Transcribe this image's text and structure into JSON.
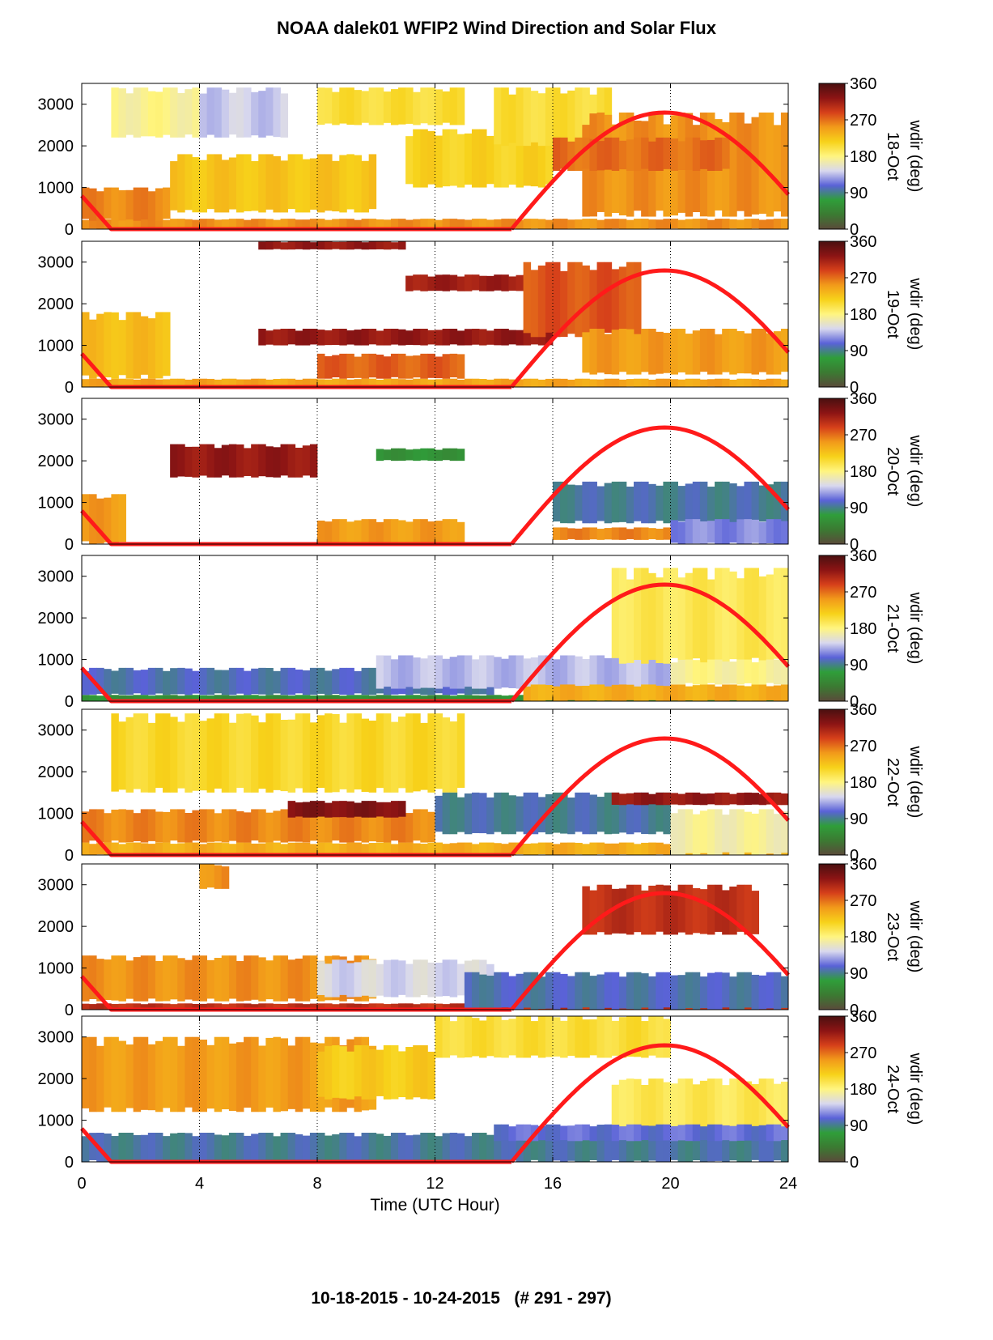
{
  "title": "NOAA dalek01 WFIP2 Wind Direction and Solar Flux",
  "footer": "10-18-2015 - 10-24-2015   (# 291 - 297)",
  "colors": {
    "colormap": [
      "#5a4a3a",
      "#3b7a32",
      "#2f9e3a",
      "#5a62d8",
      "#d8d8ee",
      "#fff580",
      "#f7d21a",
      "#f29a1a",
      "#d6401a",
      "#8c1414",
      "#4a1010"
    ],
    "solar_curve": "#ff1a1a",
    "grid": "#000000"
  },
  "chart_data": {
    "type": "heatmap",
    "xlabel": "Time (UTC Hour)",
    "xlim": [
      0,
      24
    ],
    "xticks": [
      "0",
      "4",
      "8",
      "12",
      "16",
      "20",
      "24"
    ],
    "ylim": [
      0,
      3500
    ],
    "yticks": [
      "0",
      "1000",
      "2000",
      "3000"
    ],
    "colorbar": {
      "label": "wdir (deg)",
      "range": [
        0,
        360
      ],
      "ticks": [
        "0",
        "90",
        "180",
        "270",
        "360"
      ]
    },
    "solar_flux_curve": {
      "sunrise_hour": 14.6,
      "sunset_hour": 1.0,
      "peak_hour": 19.8,
      "peak_height": 2800,
      "value_at_0h": 800
    },
    "panels": [
      {
        "date": "18-Oct",
        "regions": [
          {
            "x": [
              0,
              24
            ],
            "y": [
              0,
              250
            ],
            "dir": 255
          },
          {
            "x": [
              0,
              3
            ],
            "y": [
              200,
              1000
            ],
            "dir": 260
          },
          {
            "x": [
              3,
              10
            ],
            "y": [
              400,
              1800
            ],
            "dir": 225
          },
          {
            "x": [
              1,
              4
            ],
            "y": [
              2200,
              3400
            ],
            "dir": 175
          },
          {
            "x": [
              4,
              7
            ],
            "y": [
              2200,
              3400
            ],
            "dir": 140
          },
          {
            "x": [
              8,
              13
            ],
            "y": [
              2500,
              3400
            ],
            "dir": 205
          },
          {
            "x": [
              11,
              16
            ],
            "y": [
              1000,
              2400
            ],
            "dir": 215
          },
          {
            "x": [
              14,
              18
            ],
            "y": [
              2000,
              3400
            ],
            "dir": 205
          },
          {
            "x": [
              17,
              24
            ],
            "y": [
              300,
              2800
            ],
            "dir": 255
          },
          {
            "x": [
              16,
              22
            ],
            "y": [
              1400,
              2200
            ],
            "dir": 270
          }
        ]
      },
      {
        "date": "19-Oct",
        "regions": [
          {
            "x": [
              0,
              24
            ],
            "y": [
              0,
              200
            ],
            "dir": 245
          },
          {
            "x": [
              0,
              3
            ],
            "y": [
              200,
              1800
            ],
            "dir": 230
          },
          {
            "x": [
              6,
              11
            ],
            "y": [
              3300,
              3500
            ],
            "dir": 320
          },
          {
            "x": [
              6,
              16
            ],
            "y": [
              1000,
              1400
            ],
            "dir": 320
          },
          {
            "x": [
              11,
              16
            ],
            "y": [
              2300,
              2700
            ],
            "dir": 315
          },
          {
            "x": [
              15,
              19
            ],
            "y": [
              1200,
              3000
            ],
            "dir": 280
          },
          {
            "x": [
              17,
              24
            ],
            "y": [
              300,
              1400
            ],
            "dir": 250
          },
          {
            "x": [
              8,
              13
            ],
            "y": [
              200,
              800
            ],
            "dir": 275
          }
        ]
      },
      {
        "date": "20-Oct",
        "regions": [
          {
            "x": [
              0,
              1.5
            ],
            "y": [
              0,
              1200
            ],
            "dir": 250
          },
          {
            "x": [
              8,
              13
            ],
            "y": [
              0,
              600
            ],
            "dir": 250
          },
          {
            "x": [
              3,
              8
            ],
            "y": [
              1600,
              2400
            ],
            "dir": 320
          },
          {
            "x": [
              10,
              13
            ],
            "y": [
              2000,
              2300
            ],
            "dir": 60
          },
          {
            "x": [
              16,
              24
            ],
            "y": [
              500,
              1500
            ],
            "dir": 95
          },
          {
            "x": [
              20,
              24
            ],
            "y": [
              0,
              600
            ],
            "dir": 120
          },
          {
            "x": [
              16,
              20
            ],
            "y": [
              100,
              400
            ],
            "dir": 260
          }
        ]
      },
      {
        "date": "21-Oct",
        "regions": [
          {
            "x": [
              0,
              24
            ],
            "y": [
              0,
              150
            ],
            "dir": 60
          },
          {
            "x": [
              0,
              14
            ],
            "y": [
              150,
              800
            ],
            "dir": 100
          },
          {
            "x": [
              10,
              20
            ],
            "y": [
              300,
              1100
            ],
            "dir": 135
          },
          {
            "x": [
              15,
              24
            ],
            "y": [
              0,
              400
            ],
            "dir": 240
          },
          {
            "x": [
              18,
              24
            ],
            "y": [
              900,
              3200
            ],
            "dir": 195
          },
          {
            "x": [
              20,
              24
            ],
            "y": [
              400,
              1000
            ],
            "dir": 175
          }
        ]
      },
      {
        "date": "22-Oct",
        "regions": [
          {
            "x": [
              0,
              24
            ],
            "y": [
              0,
              300
            ],
            "dir": 240
          },
          {
            "x": [
              0,
              12
            ],
            "y": [
              300,
              1100
            ],
            "dir": 260
          },
          {
            "x": [
              1,
              13
            ],
            "y": [
              1500,
              3400
            ],
            "dir": 210
          },
          {
            "x": [
              12,
              20
            ],
            "y": [
              500,
              1500
            ],
            "dir": 95
          },
          {
            "x": [
              18,
              24
            ],
            "y": [
              1200,
              1500
            ],
            "dir": 320
          },
          {
            "x": [
              20,
              24
            ],
            "y": [
              0,
              1100
            ],
            "dir": 170
          },
          {
            "x": [
              7,
              11
            ],
            "y": [
              900,
              1300
            ],
            "dir": 330
          }
        ]
      },
      {
        "date": "23-Oct",
        "regions": [
          {
            "x": [
              0,
              24
            ],
            "y": [
              0,
              150
            ],
            "dir": 300
          },
          {
            "x": [
              0,
              10
            ],
            "y": [
              200,
              1300
            ],
            "dir": 255
          },
          {
            "x": [
              8,
              14
            ],
            "y": [
              300,
              1200
            ],
            "dir": 145
          },
          {
            "x": [
              13,
              24
            ],
            "y": [
              0,
              900
            ],
            "dir": 100
          },
          {
            "x": [
              17,
              23
            ],
            "y": [
              1800,
              3000
            ],
            "dir": 300
          },
          {
            "x": [
              4,
              5
            ],
            "y": [
              2900,
              3500
            ],
            "dir": 255
          }
        ]
      },
      {
        "date": "24-Oct",
        "regions": [
          {
            "x": [
              0,
              24
            ],
            "y": [
              0,
              700
            ],
            "dir": 95
          },
          {
            "x": [
              0,
              10
            ],
            "y": [
              1200,
              3000
            ],
            "dir": 250
          },
          {
            "x": [
              8,
              12
            ],
            "y": [
              1500,
              2800
            ],
            "dir": 220
          },
          {
            "x": [
              12,
              20
            ],
            "y": [
              2500,
              3500
            ],
            "dir": 205
          },
          {
            "x": [
              18,
              24
            ],
            "y": [
              700,
              2000
            ],
            "dir": 195
          },
          {
            "x": [
              14,
              24
            ],
            "y": [
              500,
              900
            ],
            "dir": 110
          }
        ]
      }
    ]
  }
}
